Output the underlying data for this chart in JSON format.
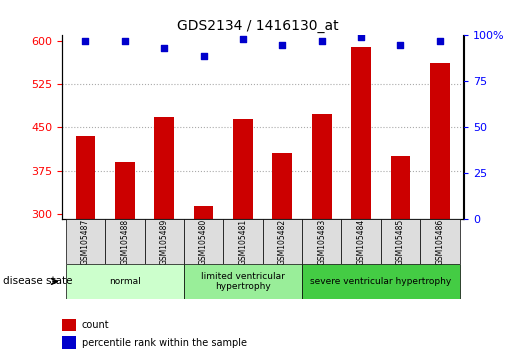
{
  "title": "GDS2134 / 1416130_at",
  "samples": [
    "GSM105487",
    "GSM105488",
    "GSM105489",
    "GSM105480",
    "GSM105481",
    "GSM105482",
    "GSM105483",
    "GSM105484",
    "GSM105485",
    "GSM105486"
  ],
  "counts": [
    435,
    390,
    468,
    313,
    465,
    405,
    473,
    590,
    400,
    562
  ],
  "percentiles": [
    97,
    97,
    93,
    89,
    98,
    95,
    97,
    99,
    95,
    97
  ],
  "ylim_left": [
    290,
    610
  ],
  "ylim_right": [
    0,
    100
  ],
  "yticks_left": [
    300,
    375,
    450,
    525,
    600
  ],
  "yticks_right": [
    0,
    25,
    50,
    75,
    100
  ],
  "bar_color": "#cc0000",
  "dot_color": "#0000cc",
  "groups": [
    {
      "label": "normal",
      "indices": [
        0,
        1,
        2
      ],
      "color": "#ccffcc"
    },
    {
      "label": "limited ventricular\nhypertrophy",
      "indices": [
        3,
        4,
        5
      ],
      "color": "#99ee99"
    },
    {
      "label": "severe ventricular hypertrophy",
      "indices": [
        6,
        7,
        8,
        9
      ],
      "color": "#44cc44"
    }
  ],
  "disease_state_label": "disease state",
  "legend_count_label": "count",
  "legend_percentile_label": "percentile rank within the sample",
  "grid_color": "#aaaaaa",
  "bg_color": "#ffffff",
  "sample_box_color": "#dddddd",
  "bar_width": 0.5
}
